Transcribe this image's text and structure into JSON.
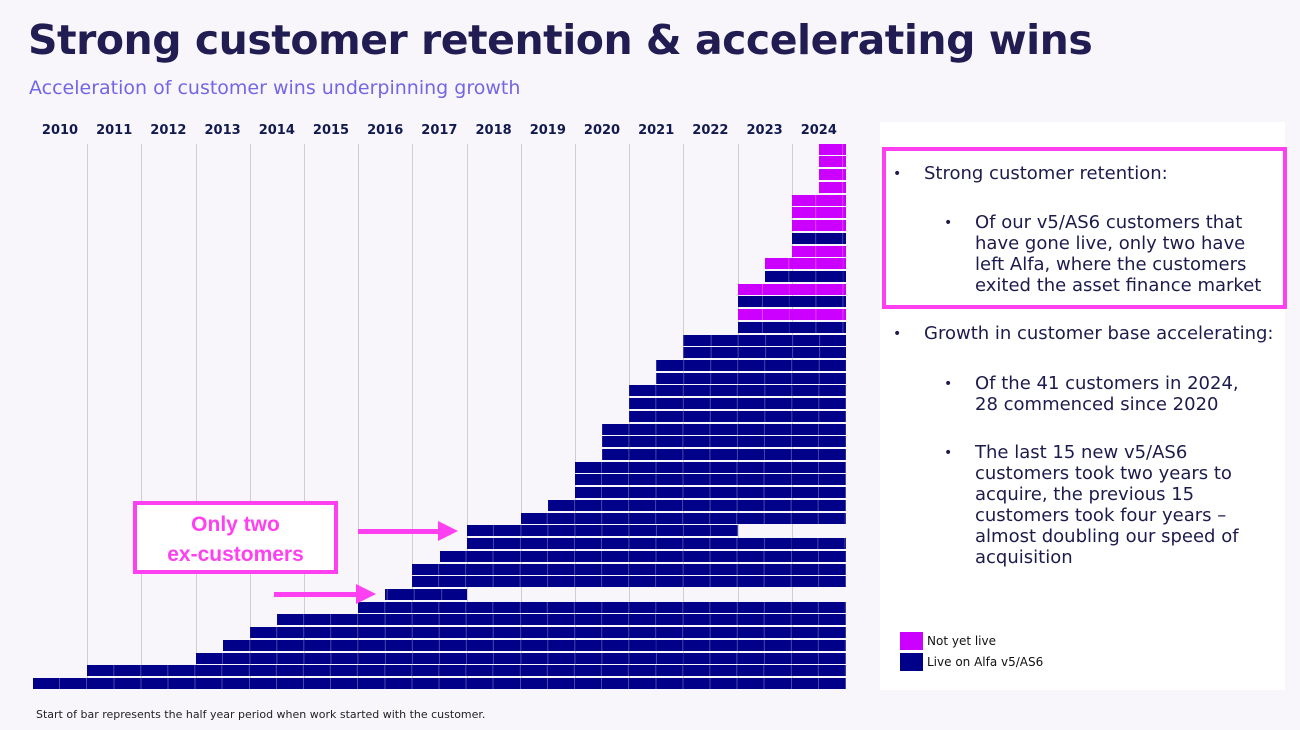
{
  "title": "Strong customer retention & accelerating wins",
  "subtitle": "Acceleration of customer wins underpinning growth",
  "footnote": "Start of bar represents the half year period when work started with the customer.",
  "colors": {
    "live": "#000088",
    "not_yet_live": "#cc00ff",
    "callout": "#ff40f0",
    "title": "#211d52",
    "subtitle": "#7366e6"
  },
  "callout": {
    "line1": "Only two",
    "line2": "ex-customers"
  },
  "panel": {
    "point1": "Strong customer retention:",
    "point1_sub": "Of our v5/AS6 customers that have gone live, only two have left Alfa, where the customers exited the asset finance market",
    "point2": "Growth in customer base accelerating:",
    "point2_sub1": "Of the 41 customers in 2024, 28 commenced since 2020",
    "point2_sub2": "The last 15 new v5/AS6 customers took two years to acquire, the previous 15 customers took four years – almost doubling our speed of acquisition",
    "bullet": "•"
  },
  "chart_data": {
    "type": "gantt",
    "x_axis": {
      "ticks": [
        "2010",
        "2011",
        "2012",
        "2013",
        "2014",
        "2015",
        "2016",
        "2017",
        "2018",
        "2019",
        "2020",
        "2021",
        "2022",
        "2023",
        "2024"
      ],
      "range": [
        2010,
        2025
      ],
      "position": "top",
      "grid": true
    },
    "legend": {
      "placement": "bottom-right",
      "entries": [
        {
          "label": "Not yet live",
          "status": "not_yet_live"
        },
        {
          "label": "Live on Alfa v5/AS6",
          "status": "live"
        }
      ]
    },
    "order": "bottom-to-top",
    "customers": [
      {
        "start": 2010.0,
        "end": 2025,
        "status": "live"
      },
      {
        "start": 2011.0,
        "end": 2025,
        "status": "live"
      },
      {
        "start": 2013.0,
        "end": 2025,
        "status": "live"
      },
      {
        "start": 2013.5,
        "end": 2025,
        "status": "live"
      },
      {
        "start": 2014.0,
        "end": 2025,
        "status": "live"
      },
      {
        "start": 2014.5,
        "end": 2025,
        "status": "live"
      },
      {
        "start": 2016.0,
        "end": 2025,
        "status": "live"
      },
      {
        "start": 2016.5,
        "end": 2018.0,
        "status": "live",
        "ex_customer": true
      },
      {
        "start": 2017.0,
        "end": 2025,
        "status": "live"
      },
      {
        "start": 2017.0,
        "end": 2025,
        "status": "live"
      },
      {
        "start": 2017.5,
        "end": 2025,
        "status": "live"
      },
      {
        "start": 2018.0,
        "end": 2025,
        "status": "live"
      },
      {
        "start": 2018.0,
        "end": 2023.0,
        "status": "live",
        "ex_customer": true
      },
      {
        "start": 2019.0,
        "end": 2025,
        "status": "live"
      },
      {
        "start": 2019.5,
        "end": 2025,
        "status": "live"
      },
      {
        "start": 2020.0,
        "end": 2025,
        "status": "live"
      },
      {
        "start": 2020.0,
        "end": 2025,
        "status": "live"
      },
      {
        "start": 2020.0,
        "end": 2025,
        "status": "live"
      },
      {
        "start": 2020.5,
        "end": 2025,
        "status": "live"
      },
      {
        "start": 2020.5,
        "end": 2025,
        "status": "live"
      },
      {
        "start": 2020.5,
        "end": 2025,
        "status": "live"
      },
      {
        "start": 2021.0,
        "end": 2025,
        "status": "live"
      },
      {
        "start": 2021.0,
        "end": 2025,
        "status": "live"
      },
      {
        "start": 2021.0,
        "end": 2025,
        "status": "live"
      },
      {
        "start": 2021.5,
        "end": 2025,
        "status": "live"
      },
      {
        "start": 2021.5,
        "end": 2025,
        "status": "live"
      },
      {
        "start": 2022.0,
        "end": 2025,
        "status": "live"
      },
      {
        "start": 2022.0,
        "end": 2025,
        "status": "live"
      },
      {
        "start": 2023.0,
        "end": 2025,
        "status": "live"
      },
      {
        "start": 2023.0,
        "end": 2025,
        "status": "not_yet_live"
      },
      {
        "start": 2023.0,
        "end": 2025,
        "status": "live"
      },
      {
        "start": 2023.0,
        "end": 2025,
        "status": "not_yet_live"
      },
      {
        "start": 2023.5,
        "end": 2025,
        "status": "live"
      },
      {
        "start": 2023.5,
        "end": 2025,
        "status": "not_yet_live"
      },
      {
        "start": 2024.0,
        "end": 2025,
        "status": "not_yet_live"
      },
      {
        "start": 2024.0,
        "end": 2025,
        "status": "live"
      },
      {
        "start": 2024.0,
        "end": 2025,
        "status": "not_yet_live"
      },
      {
        "start": 2024.0,
        "end": 2025,
        "status": "not_yet_live"
      },
      {
        "start": 2024.0,
        "end": 2025,
        "status": "not_yet_live"
      },
      {
        "start": 2024.5,
        "end": 2025,
        "status": "not_yet_live"
      },
      {
        "start": 2024.5,
        "end": 2025,
        "status": "not_yet_live"
      },
      {
        "start": 2024.5,
        "end": 2025,
        "status": "not_yet_live"
      },
      {
        "start": 2024.5,
        "end": 2025,
        "status": "not_yet_live"
      }
    ]
  }
}
